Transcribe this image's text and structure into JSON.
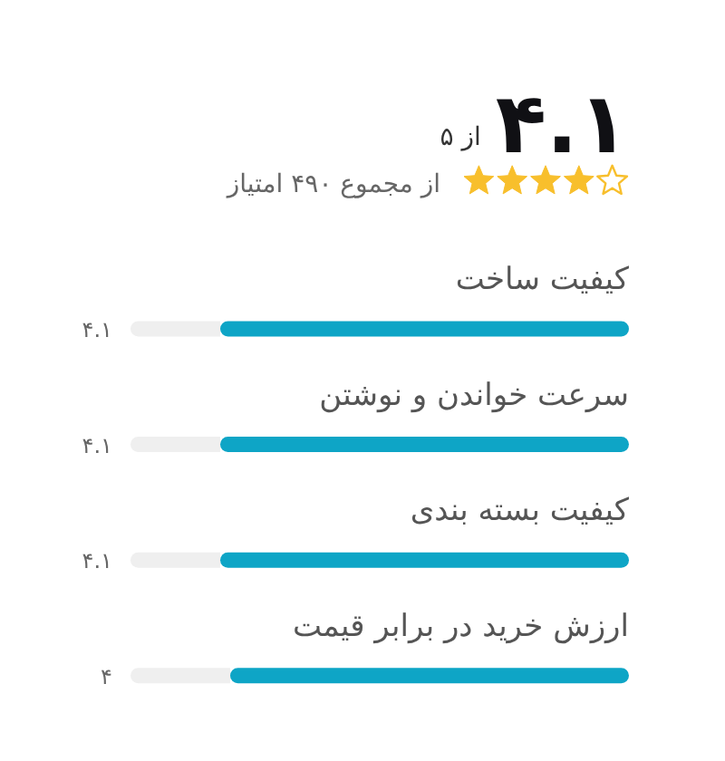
{
  "chart_data": {
    "type": "bar",
    "orientation": "horizontal",
    "title": "۴.۱",
    "subtitle": "از ۵",
    "annotations": [
      "از مجموع ۴۹۰ امتیاز"
    ],
    "categories": [
      "کیفیت ساخت",
      "سرعت خواندن و نوشتن",
      "کیفیت بسته بندی",
      "ارزش خرید در برابر قیمت"
    ],
    "values": [
      4.1,
      4.1,
      4.1,
      4
    ],
    "value_labels": [
      "۴.۱",
      "۴.۱",
      "۴.۱",
      "۴"
    ],
    "color": "#0ea5c6",
    "xlim": [
      5,
      0
    ]
  }
}
